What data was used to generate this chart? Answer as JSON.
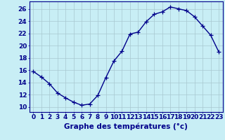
{
  "hours": [
    0,
    1,
    2,
    3,
    4,
    5,
    6,
    7,
    8,
    9,
    10,
    11,
    12,
    13,
    14,
    15,
    16,
    17,
    18,
    19,
    20,
    21,
    22,
    23
  ],
  "temps": [
    15.8,
    14.9,
    13.8,
    12.3,
    11.5,
    10.8,
    10.3,
    10.5,
    11.9,
    14.8,
    17.5,
    19.1,
    21.9,
    22.2,
    23.9,
    25.1,
    25.5,
    26.3,
    26.0,
    25.7,
    24.7,
    23.2,
    21.7,
    19.0
  ],
  "line_color": "#00008B",
  "marker": "+",
  "marker_color": "#00008B",
  "bg_color": "#c8eef5",
  "grid_color": "#a8c8d0",
  "axis_color": "#00008B",
  "xlabel": "Graphe des températures (°c)",
  "xlabel_fontsize": 7.5,
  "ylabel_ticks": [
    10,
    12,
    14,
    16,
    18,
    20,
    22,
    24,
    26
  ],
  "ylim": [
    9.2,
    27.2
  ],
  "xlim": [
    -0.5,
    23.5
  ],
  "tick_fontsize": 6.5,
  "linewidth": 1.0
}
